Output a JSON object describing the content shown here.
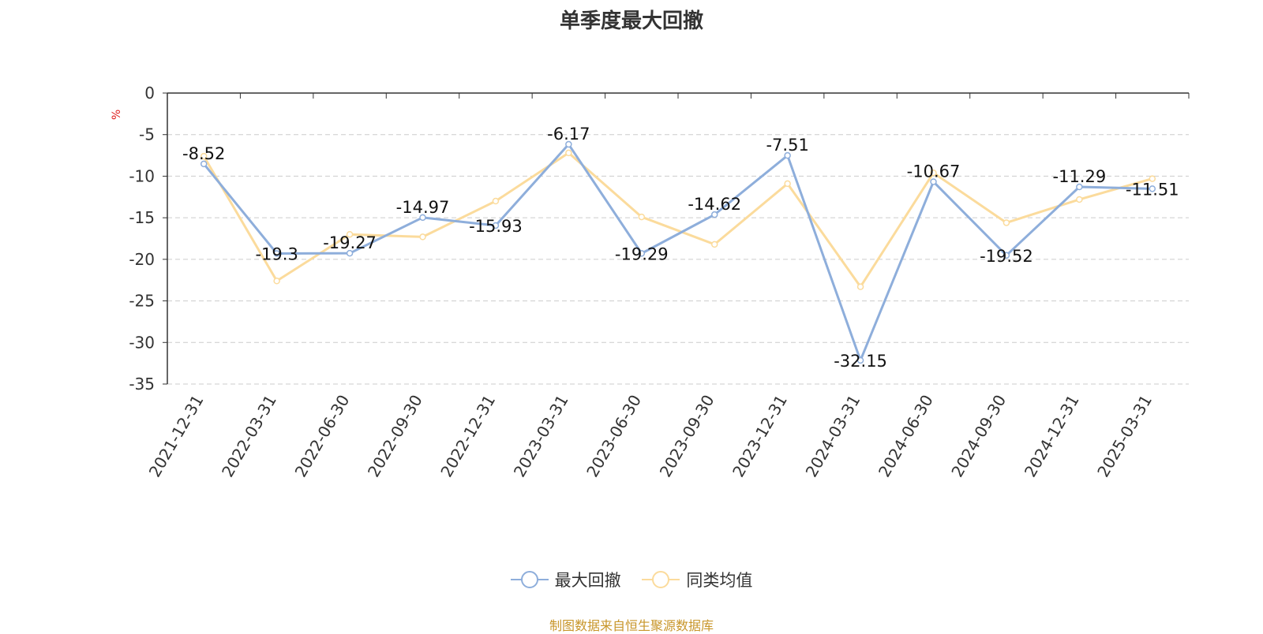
{
  "chart_data": {
    "type": "line",
    "title": "单季度最大回撤",
    "ylabel": "%",
    "ylim": [
      -35,
      0
    ],
    "yticks": [
      0,
      -5,
      -10,
      -15,
      -20,
      -25,
      -30,
      -35
    ],
    "grid": true,
    "legend_position": "bottom",
    "categories": [
      "2021-12-31",
      "2022-03-31",
      "2022-06-30",
      "2022-09-30",
      "2022-12-31",
      "2023-03-31",
      "2023-06-30",
      "2023-09-30",
      "2023-12-31",
      "2024-03-31",
      "2024-06-30",
      "2024-09-30",
      "2024-12-31",
      "2025-03-31"
    ],
    "series": [
      {
        "name": "最大回撤",
        "color": "#8eaedb",
        "values": [
          -8.52,
          -19.3,
          -19.27,
          -14.97,
          -15.93,
          -6.17,
          -19.29,
          -14.62,
          -7.51,
          -32.15,
          -10.67,
          -19.52,
          -11.29,
          -11.51
        ],
        "show_labels": true
      },
      {
        "name": "同类均值",
        "color": "#fbdb9c",
        "values": [
          -7.6,
          -22.6,
          -17.0,
          -17.3,
          -13.0,
          -7.2,
          -14.9,
          -18.2,
          -10.9,
          -23.3,
          -9.6,
          -15.6,
          -12.8,
          -10.3
        ],
        "show_labels": false
      }
    ]
  },
  "source_note": "制图数据来自恒生聚源数据库"
}
